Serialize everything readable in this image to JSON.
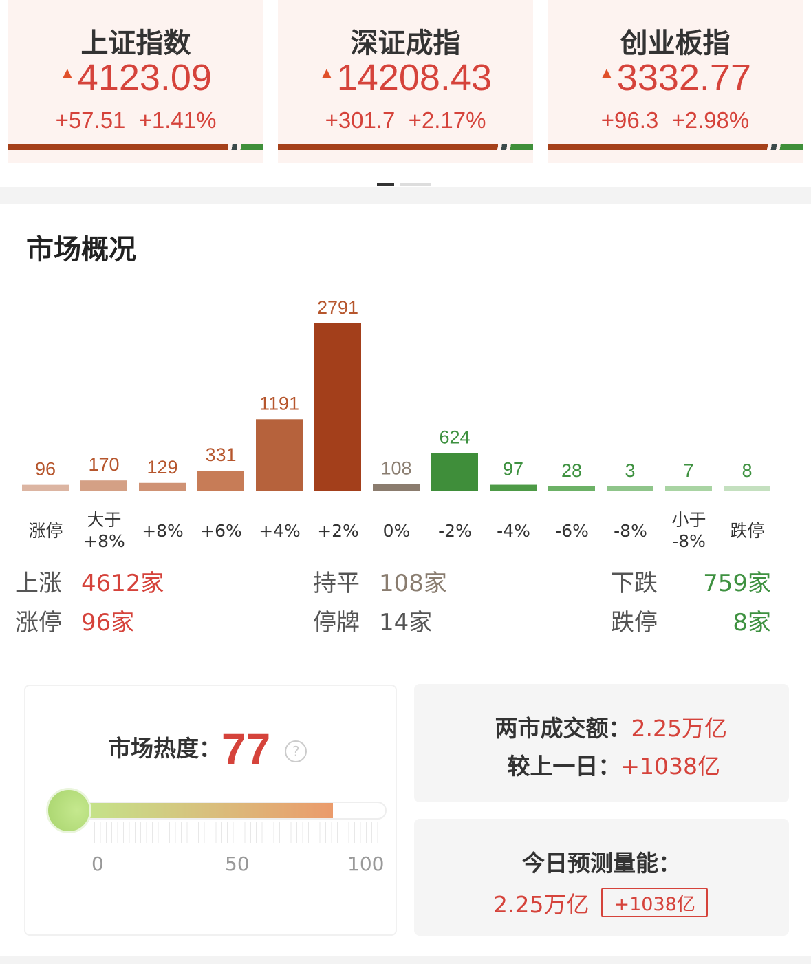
{
  "indices": [
    {
      "name": "上证指数",
      "price": "4123.09",
      "change": "+57.51",
      "pct": "+1.41%"
    },
    {
      "name": "深证成指",
      "price": "14208.43",
      "change": "+301.7",
      "pct": "+2.17%"
    },
    {
      "name": "创业板指",
      "price": "3332.77",
      "change": "+96.3",
      "pct": "+2.98%"
    }
  ],
  "up_arrow": "▲",
  "section_title": "市场概况",
  "chart_data": {
    "type": "bar",
    "categories": [
      "涨停",
      "大于\n+8%",
      "+8%",
      "+6%",
      "+4%",
      "+2%",
      "0%",
      "-2%",
      "-4%",
      "-6%",
      "-8%",
      "小于\n-8%",
      "跌停"
    ],
    "values": [
      96,
      170,
      129,
      331,
      1191,
      2791,
      108,
      624,
      97,
      28,
      3,
      7,
      8
    ],
    "colors": [
      "#dcb5a2",
      "#d4a085",
      "#cf9274",
      "#c77c57",
      "#b6623c",
      "#a33f1b",
      "#8b7c6e",
      "#3f8e3a",
      "#4d9a46",
      "#6cb166",
      "#8fc58a",
      "#a9d4a3",
      "#c4e0bf"
    ],
    "label_colors": {
      "up": "#b6562d",
      "flat": "#8a7d70",
      "down": "#3e9140"
    }
  },
  "stats": {
    "up_label": "上涨",
    "up_value": "4612家",
    "limit_up_label": "涨停",
    "limit_up_value": "96家",
    "flat_label": "持平",
    "flat_value": "108家",
    "halt_label": "停牌",
    "halt_value": "14家",
    "down_label": "下跌",
    "down_value": "759家",
    "limit_down_label": "跌停",
    "limit_down_value": "8家"
  },
  "heat": {
    "label": "市场热度：",
    "value": "77",
    "help_icon": "?",
    "percent": 77,
    "ticks": [
      "0",
      "50",
      "100"
    ]
  },
  "turnover": {
    "label1": "两市成交额：",
    "value1": "2.25万亿",
    "label2": "较上一日：",
    "value2": "+1038亿"
  },
  "forecast": {
    "label": "今日预测量能：",
    "value": "2.25万亿",
    "badge": "+1038亿"
  },
  "colors": {
    "red": "#d5433b",
    "green": "#3f8f3a",
    "bar_dark": "#a5401a"
  }
}
